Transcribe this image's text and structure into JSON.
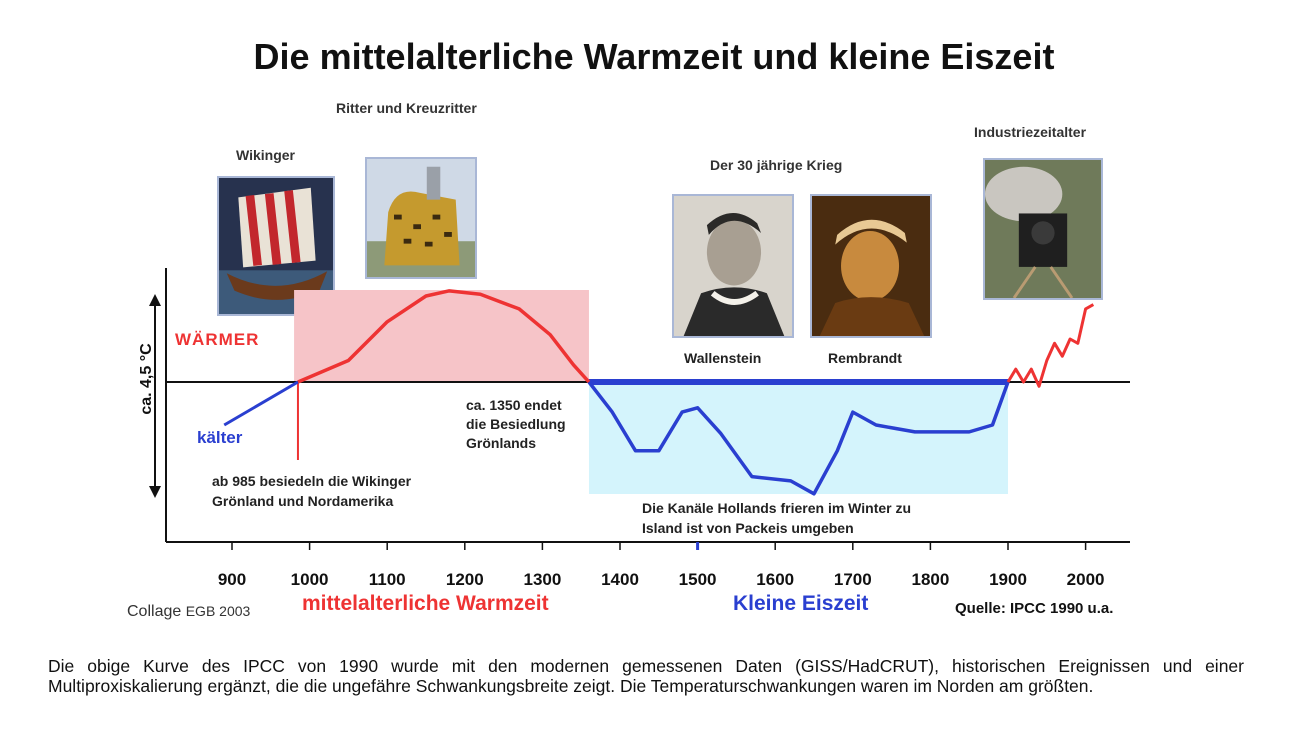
{
  "title": "Die mittelalterliche Warmzeit und kleine Eiszeit",
  "images": {
    "vikings": {
      "label": "Wikinger"
    },
    "knights": {
      "label": "Ritter und Kreuzritter"
    },
    "war": {
      "label": "Der 30 jährige Krieg"
    },
    "wallenstein": {
      "label": "Wallenstein"
    },
    "rembrandt": {
      "label": "Rembrandt"
    },
    "industry": {
      "label": "Industriezeitalter"
    }
  },
  "labels": {
    "warmer": "WÄRMER",
    "colder": "kälter",
    "yaxis": "ca. 4,5 °C",
    "vikings_note_1": "ab 985 besiedeln die Wikinger",
    "vikings_note_2": "Grönland und Nordamerika",
    "greenland_note_1": "ca. 1350 endet",
    "greenland_note_2": "die Besiedlung",
    "greenland_note_3": "Grönlands",
    "holland_note_1": "Die Kanäle Hollands frieren im Winter zu",
    "holland_note_2": "Island ist von Packeis umgeben",
    "collage": "Collage",
    "collage_year": "EGB 2003",
    "mwp": "mittelalterliche Warmzeit",
    "lia": "Kleine Eiszeit",
    "source": "Quelle: IPCC 1990 u.a."
  },
  "caption": "Die obige Kurve des IPCC von 1990 wurde mit den modernen gemessenen Daten (GISS/HadCRUT), historischen Ereignissen und einer Multiproxiskalierung ergänzt, die die ungefähre Schwankungsbreite zeigt. Die Temperaturschwankungen waren im Norden am größten.",
  "colors": {
    "warm": "#ee3333",
    "warm_fill": "#f6c4c8",
    "cold": "#2a3fd0",
    "cold_fill": "#d4f4fc",
    "axis": "#111111"
  },
  "chart_data": {
    "type": "line",
    "xlabel": "",
    "ylabel": "ca. 4,5 °C",
    "xlim": [
      850,
      2050
    ],
    "ylim": [
      -1.8,
      1.6
    ],
    "xticks": [
      900,
      1000,
      1100,
      1200,
      1300,
      1400,
      1500,
      1600,
      1700,
      1800,
      1900,
      2000
    ],
    "warm_region": {
      "from": 980,
      "to": 1360
    },
    "cold_region": {
      "from": 1360,
      "to": 1900
    },
    "series": [
      {
        "values": [
          {
            "x": 890,
            "y": -0.5
          },
          {
            "x": 985,
            "y": 0.0
          },
          {
            "x": 1050,
            "y": 0.25
          },
          {
            "x": 1100,
            "y": 0.7
          },
          {
            "x": 1150,
            "y": 1.0
          },
          {
            "x": 1180,
            "y": 1.06
          },
          {
            "x": 1220,
            "y": 1.02
          },
          {
            "x": 1270,
            "y": 0.85
          },
          {
            "x": 1310,
            "y": 0.55
          },
          {
            "x": 1340,
            "y": 0.2
          },
          {
            "x": 1360,
            "y": 0.0
          }
        ]
      },
      {
        "values": [
          {
            "x": 1360,
            "y": 0.0
          },
          {
            "x": 1390,
            "y": -0.35
          },
          {
            "x": 1420,
            "y": -0.8
          },
          {
            "x": 1450,
            "y": -0.8
          },
          {
            "x": 1480,
            "y": -0.35
          },
          {
            "x": 1500,
            "y": -0.3
          },
          {
            "x": 1530,
            "y": -0.6
          },
          {
            "x": 1570,
            "y": -1.1
          },
          {
            "x": 1620,
            "y": -1.15
          },
          {
            "x": 1650,
            "y": -1.3
          },
          {
            "x": 1680,
            "y": -0.8
          },
          {
            "x": 1700,
            "y": -0.35
          },
          {
            "x": 1730,
            "y": -0.5
          },
          {
            "x": 1780,
            "y": -0.58
          },
          {
            "x": 1850,
            "y": -0.58
          },
          {
            "x": 1880,
            "y": -0.5
          },
          {
            "x": 1900,
            "y": 0.0
          }
        ]
      },
      {
        "values": [
          {
            "x": 1900,
            "y": 0.0
          },
          {
            "x": 1910,
            "y": 0.15
          },
          {
            "x": 1920,
            "y": 0.0
          },
          {
            "x": 1930,
            "y": 0.15
          },
          {
            "x": 1940,
            "y": -0.05
          },
          {
            "x": 1950,
            "y": 0.25
          },
          {
            "x": 1960,
            "y": 0.45
          },
          {
            "x": 1970,
            "y": 0.3
          },
          {
            "x": 1980,
            "y": 0.5
          },
          {
            "x": 1990,
            "y": 0.45
          },
          {
            "x": 2000,
            "y": 0.85
          },
          {
            "x": 2010,
            "y": 0.9
          }
        ]
      }
    ]
  }
}
